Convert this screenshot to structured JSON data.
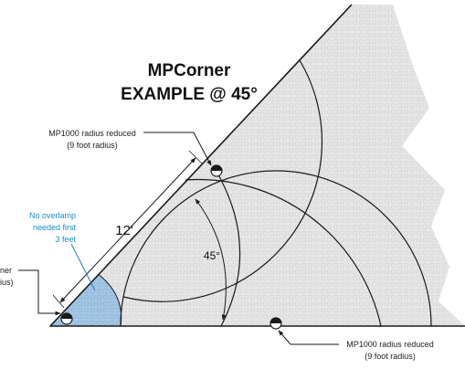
{
  "title": {
    "line1": "MPCorner",
    "line2": "EXAMPLE @ 45°"
  },
  "callouts": {
    "top_left": {
      "line1": "MP1000 radius reduced",
      "line2": "(9 foot radius)"
    },
    "bottom_right": {
      "line1": "MP1000 radius reduced",
      "line2": "(9 foot radius)"
    },
    "no_overlamp": {
      "line1": "No overlamp",
      "line2": "needed first",
      "line3": "3 feet"
    },
    "corner_cut": {
      "line1": "ner",
      "line2": "ius)"
    }
  },
  "dimensions": {
    "length": "12'",
    "angle": "45°"
  },
  "colors": {
    "line": "#1a1a1a",
    "pattern_fill": "#e7e7e7",
    "blue_zone": "#9fc3e2",
    "blue_text": "#1a8fc9",
    "blue_leader": "#2a7fb5"
  },
  "icons": [
    "fixture-icon-corner",
    "fixture-icon-wall-top",
    "fixture-icon-wall-bottom"
  ]
}
